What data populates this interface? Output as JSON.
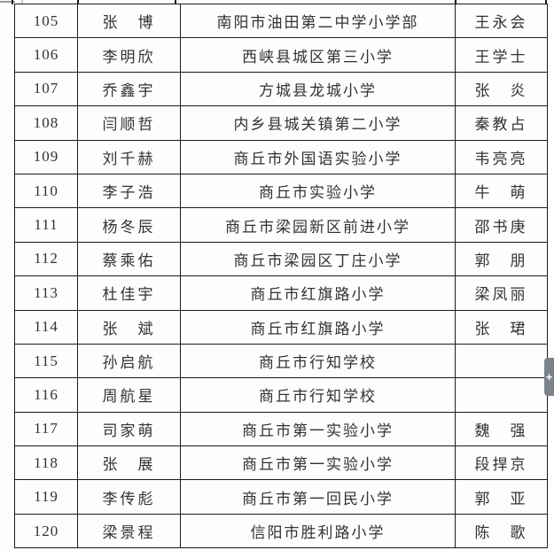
{
  "colors": {
    "table_border": "#1b1b1b",
    "text": "#323232",
    "background": "#fdfdfe",
    "side_handle": "#7b828a",
    "artifact_gray": "#9a9a9a"
  },
  "side_handle": {
    "plus_label": "+"
  },
  "table": {
    "rows": [
      {
        "no": "105",
        "student": "张　博",
        "school": "南阳市油田第二中学小学部",
        "teacher": "王永会"
      },
      {
        "no": "106",
        "student": "李明欣",
        "school": "西峡县城区第三小学",
        "teacher": "王学士"
      },
      {
        "no": "107",
        "student": "乔鑫宇",
        "school": "方城县龙城小学",
        "teacher": "张　炎"
      },
      {
        "no": "108",
        "student": "闫顺哲",
        "school": "内乡县城关镇第二小学",
        "teacher": "秦教占"
      },
      {
        "no": "109",
        "student": "刘千赫",
        "school": "商丘市外国语实验小学",
        "teacher": "韦亮亮"
      },
      {
        "no": "110",
        "student": "李子浩",
        "school": "商丘市实验小学",
        "teacher": "牛　萌"
      },
      {
        "no": "111",
        "student": "杨冬辰",
        "school": "商丘市梁园新区前进小学",
        "teacher": "邵书庚"
      },
      {
        "no": "112",
        "student": "蔡乘佑",
        "school": "商丘市梁园区丁庄小学",
        "teacher": "郭　朋"
      },
      {
        "no": "113",
        "student": "杜佳宇",
        "school": "商丘市红旗路小学",
        "teacher": "梁凤丽"
      },
      {
        "no": "114",
        "student": "张　斌",
        "school": "商丘市红旗路小学",
        "teacher": "张　珺"
      },
      {
        "no": "115",
        "student": "孙启航",
        "school": "商丘市行知学校",
        "teacher": ""
      },
      {
        "no": "116",
        "student": "周航星",
        "school": "商丘市行知学校",
        "teacher": ""
      },
      {
        "no": "117",
        "student": "司家萌",
        "school": "商丘市第一实验小学",
        "teacher": "魏　强"
      },
      {
        "no": "118",
        "student": "张　展",
        "school": "商丘市第一实验小学",
        "teacher": "段捍京"
      },
      {
        "no": "119",
        "student": "李传彪",
        "school": "商丘市第一回民小学",
        "teacher": "郭　亚"
      },
      {
        "no": "120",
        "student": "梁景程",
        "school": "信阳市胜利路小学",
        "teacher": "陈　歌"
      }
    ]
  }
}
